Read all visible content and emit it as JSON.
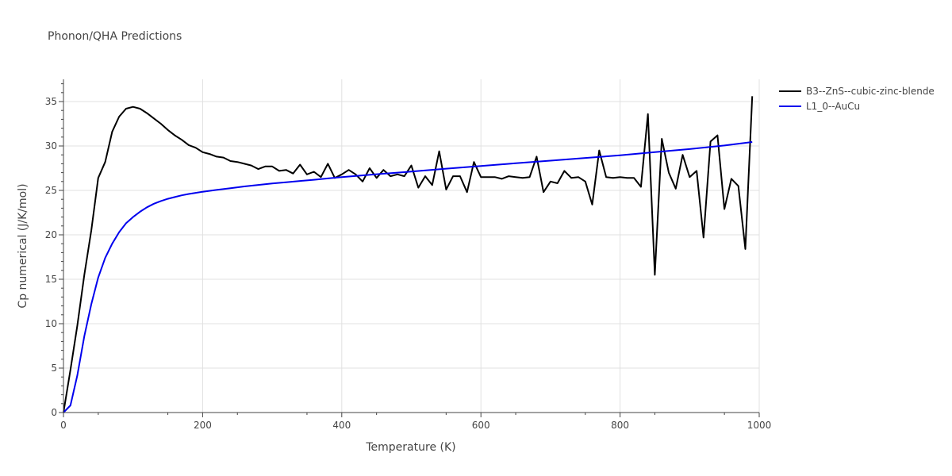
{
  "chart_data": {
    "type": "line",
    "title": "Phonon/QHA Predictions",
    "xlabel": "Temperature (K)",
    "ylabel": "Cp numerical (J/K/mol)",
    "xlim": [
      0,
      1000
    ],
    "ylim": [
      0,
      37.5
    ],
    "xticks": [
      0,
      200,
      400,
      600,
      800,
      1000
    ],
    "yticks": [
      0,
      5,
      10,
      15,
      20,
      25,
      30,
      35
    ],
    "grid": true,
    "legend_position": "top-right",
    "series": [
      {
        "name": "B3--ZnS--cubic-zinc-blende",
        "color": "#000000",
        "x": [
          0,
          10,
          20,
          30,
          40,
          50,
          60,
          70,
          80,
          90,
          100,
          110,
          120,
          130,
          140,
          150,
          160,
          170,
          180,
          190,
          200,
          210,
          220,
          230,
          240,
          250,
          260,
          270,
          280,
          290,
          300,
          310,
          320,
          330,
          340,
          350,
          360,
          370,
          380,
          390,
          400,
          410,
          420,
          430,
          440,
          450,
          460,
          470,
          480,
          490,
          500,
          510,
          520,
          530,
          540,
          550,
          560,
          570,
          580,
          590,
          600,
          610,
          620,
          630,
          640,
          650,
          660,
          670,
          680,
          690,
          700,
          710,
          720,
          730,
          740,
          750,
          760,
          770,
          780,
          790,
          800,
          810,
          820,
          830,
          840,
          850,
          860,
          870,
          880,
          890,
          900,
          910,
          920,
          930,
          940,
          950,
          960,
          970,
          980,
          990
        ],
        "y": [
          0,
          4.8,
          9.8,
          15.5,
          20.5,
          26.4,
          28.2,
          31.6,
          33.3,
          34.2,
          34.4,
          34.2,
          33.7,
          33.1,
          32.5,
          31.8,
          31.2,
          30.7,
          30.1,
          29.8,
          29.3,
          29.1,
          28.8,
          28.7,
          28.3,
          28.2,
          28.0,
          27.8,
          27.4,
          27.7,
          27.7,
          27.2,
          27.3,
          26.9,
          27.9,
          26.8,
          27.1,
          26.5,
          28.0,
          26.4,
          26.8,
          27.3,
          26.8,
          26.0,
          27.5,
          26.4,
          27.3,
          26.6,
          26.8,
          26.6,
          27.8,
          25.3,
          26.6,
          25.6,
          29.4,
          25.1,
          26.6,
          26.6,
          24.8,
          28.2,
          26.5,
          26.5,
          26.5,
          26.3,
          26.6,
          26.5,
          26.4,
          26.5,
          28.8,
          24.8,
          26.0,
          25.8,
          27.2,
          26.4,
          26.5,
          26.0,
          23.4,
          29.5,
          26.5,
          26.4,
          26.5,
          26.4,
          26.4,
          25.4,
          33.6,
          15.5,
          30.8,
          27.0,
          25.2,
          29.0,
          26.5,
          27.2,
          19.7,
          30.5,
          31.2,
          22.9,
          26.3,
          25.5,
          18.4,
          35.6
        ]
      },
      {
        "name": "L1_0--AuCu",
        "color": "#0000ee",
        "x": [
          0,
          10,
          20,
          30,
          40,
          50,
          60,
          70,
          80,
          90,
          100,
          110,
          120,
          130,
          140,
          150,
          160,
          170,
          180,
          190,
          200,
          220,
          240,
          260,
          280,
          300,
          320,
          340,
          360,
          380,
          400,
          450,
          500,
          550,
          600,
          650,
          700,
          750,
          800,
          850,
          900,
          950,
          990
        ],
        "y": [
          0,
          0.8,
          4.2,
          8.6,
          12.2,
          15.2,
          17.4,
          19.0,
          20.3,
          21.3,
          22.0,
          22.6,
          23.1,
          23.5,
          23.8,
          24.05,
          24.25,
          24.45,
          24.6,
          24.72,
          24.85,
          25.05,
          25.25,
          25.45,
          25.62,
          25.78,
          25.92,
          26.06,
          26.2,
          26.35,
          26.5,
          26.82,
          27.12,
          27.45,
          27.75,
          28.05,
          28.35,
          28.65,
          28.95,
          29.3,
          29.65,
          30.05,
          30.45
        ]
      }
    ]
  }
}
